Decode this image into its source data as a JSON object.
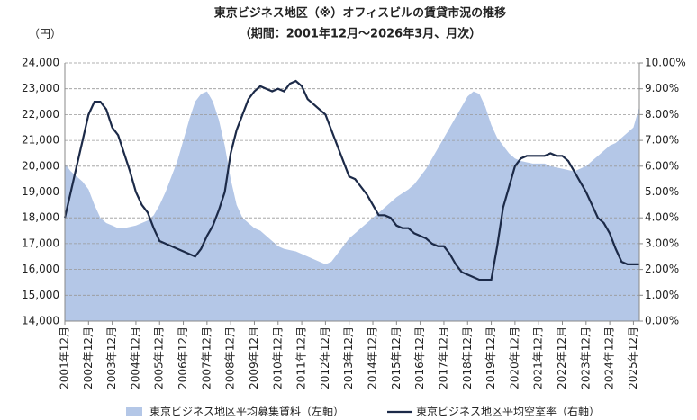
{
  "chart_data": {
    "type": "combo",
    "title": "東京ビジネス地区（※）オフィスビルの賃貸市況の推移",
    "subtitle": "（期間：2001年12月～2026年3月、月次）",
    "ylabel": "（円）",
    "categories": [
      "2001年12月",
      null,
      null,
      null,
      "2002年12月",
      null,
      null,
      null,
      "2003年12月",
      null,
      null,
      null,
      "2004年12月",
      null,
      null,
      null,
      "2005年12月",
      null,
      null,
      null,
      "2006年12月",
      null,
      null,
      null,
      "2007年12月",
      null,
      null,
      null,
      "2008年12月",
      null,
      null,
      null,
      "2009年12月",
      null,
      null,
      null,
      "2010年12月",
      null,
      null,
      null,
      "2011年12月",
      null,
      null,
      null,
      "2012年12月",
      null,
      null,
      null,
      "2013年12月",
      null,
      null,
      null,
      "2014年12月",
      null,
      null,
      null,
      "2015年12月",
      null,
      null,
      null,
      "2016年12月",
      null,
      null,
      null,
      "2017年12月",
      null,
      null,
      null,
      "2018年12月",
      null,
      null,
      null,
      "2019年12月",
      null,
      null,
      null,
      "2020年12月",
      null,
      null,
      null,
      "2021年12月",
      null,
      null,
      null,
      "2022年12月",
      null,
      null,
      null,
      "2023年12月",
      null,
      null,
      null,
      "2024年12月",
      null,
      null,
      null,
      "2025年12月",
      null
    ],
    "series": [
      {
        "name": "東京ビジネス地区平均募集賃料（左軸）",
        "type": "area",
        "color": "#b4c7e7",
        "values": [
          20100,
          19800,
          19600,
          19400,
          19100,
          18500,
          18000,
          17800,
          17700,
          17600,
          17600,
          17650,
          17700,
          17800,
          17900,
          18100,
          18500,
          19000,
          19600,
          20200,
          21000,
          21800,
          22500,
          22800,
          22900,
          22500,
          21800,
          20800,
          19500,
          18500,
          18000,
          17800,
          17600,
          17500,
          17300,
          17100,
          16900,
          16800,
          16750,
          16700,
          16600,
          16500,
          16400,
          16300,
          16200,
          16300,
          16600,
          16900,
          17200,
          17400,
          17600,
          17800,
          18000,
          18200,
          18400,
          18600,
          18800,
          18950,
          19100,
          19300,
          19600,
          19900,
          20300,
          20700,
          21100,
          21500,
          21900,
          22300,
          22700,
          22900,
          22800,
          22300,
          21600,
          21100,
          20800,
          20500,
          20300,
          20200,
          20150,
          20100,
          20100,
          20100,
          20000,
          19950,
          19900,
          19850,
          19800,
          19900,
          20000,
          20200,
          20400,
          20600,
          20800,
          20900,
          21100,
          21300,
          21500,
          22300
        ]
      },
      {
        "name": "東京ビジネス地区平均空室率（右軸）",
        "type": "line",
        "axis": "y2",
        "color": "#1c2a48",
        "values": [
          4.0,
          5.0,
          6.0,
          7.0,
          8.0,
          8.5,
          8.5,
          8.2,
          7.5,
          7.2,
          6.5,
          5.8,
          5.0,
          4.5,
          4.2,
          3.6,
          3.1,
          3.0,
          2.9,
          2.8,
          2.7,
          2.6,
          2.5,
          2.8,
          3.3,
          3.7,
          4.3,
          5.0,
          6.5,
          7.4,
          8.0,
          8.6,
          8.9,
          9.1,
          9.0,
          8.9,
          9.0,
          8.9,
          9.2,
          9.3,
          9.1,
          8.6,
          8.4,
          8.2,
          8.0,
          7.4,
          6.8,
          6.2,
          5.6,
          5.5,
          5.2,
          4.9,
          4.5,
          4.1,
          4.1,
          4.0,
          3.7,
          3.6,
          3.6,
          3.4,
          3.3,
          3.2,
          3.0,
          2.9,
          2.9,
          2.6,
          2.2,
          1.9,
          1.8,
          1.7,
          1.6,
          1.6,
          1.6,
          2.9,
          4.4,
          5.2,
          6.0,
          6.3,
          6.4,
          6.4,
          6.4,
          6.4,
          6.5,
          6.4,
          6.4,
          6.2,
          5.8,
          5.4,
          5.0,
          4.5,
          4.0,
          3.8,
          3.4,
          2.8,
          2.3,
          2.2,
          2.2,
          2.2
        ]
      }
    ],
    "ylim": [
      14000,
      24000
    ],
    "yticks": [
      {
        "value": 14000,
        "label": "14,000"
      },
      {
        "value": 15000,
        "label": "15,000"
      },
      {
        "value": 16000,
        "label": "16,000"
      },
      {
        "value": 17000,
        "label": "17,000"
      },
      {
        "value": 18000,
        "label": "18,000"
      },
      {
        "value": 19000,
        "label": "19,000"
      },
      {
        "value": 20000,
        "label": "20,000"
      },
      {
        "value": 21000,
        "label": "21,000"
      },
      {
        "value": 22000,
        "label": "22,000"
      },
      {
        "value": 23000,
        "label": "23,000"
      },
      {
        "value": 24000,
        "label": "24,000"
      }
    ],
    "y2lim": [
      0,
      10
    ],
    "y2ticks": [
      {
        "value": 0,
        "label": "0.00%"
      },
      {
        "value": 1,
        "label": "1.00%"
      },
      {
        "value": 2,
        "label": "2.00%"
      },
      {
        "value": 3,
        "label": "3.00%"
      },
      {
        "value": 4,
        "label": "4.00%"
      },
      {
        "value": 5,
        "label": "5.00%"
      },
      {
        "value": 6,
        "label": "6.00%"
      },
      {
        "value": 7,
        "label": "7.00%"
      },
      {
        "value": 8,
        "label": "8.00%"
      },
      {
        "value": 9,
        "label": "9.00%"
      },
      {
        "value": 10,
        "label": "10.00%"
      }
    ],
    "grid": true,
    "legend": "bottom"
  }
}
